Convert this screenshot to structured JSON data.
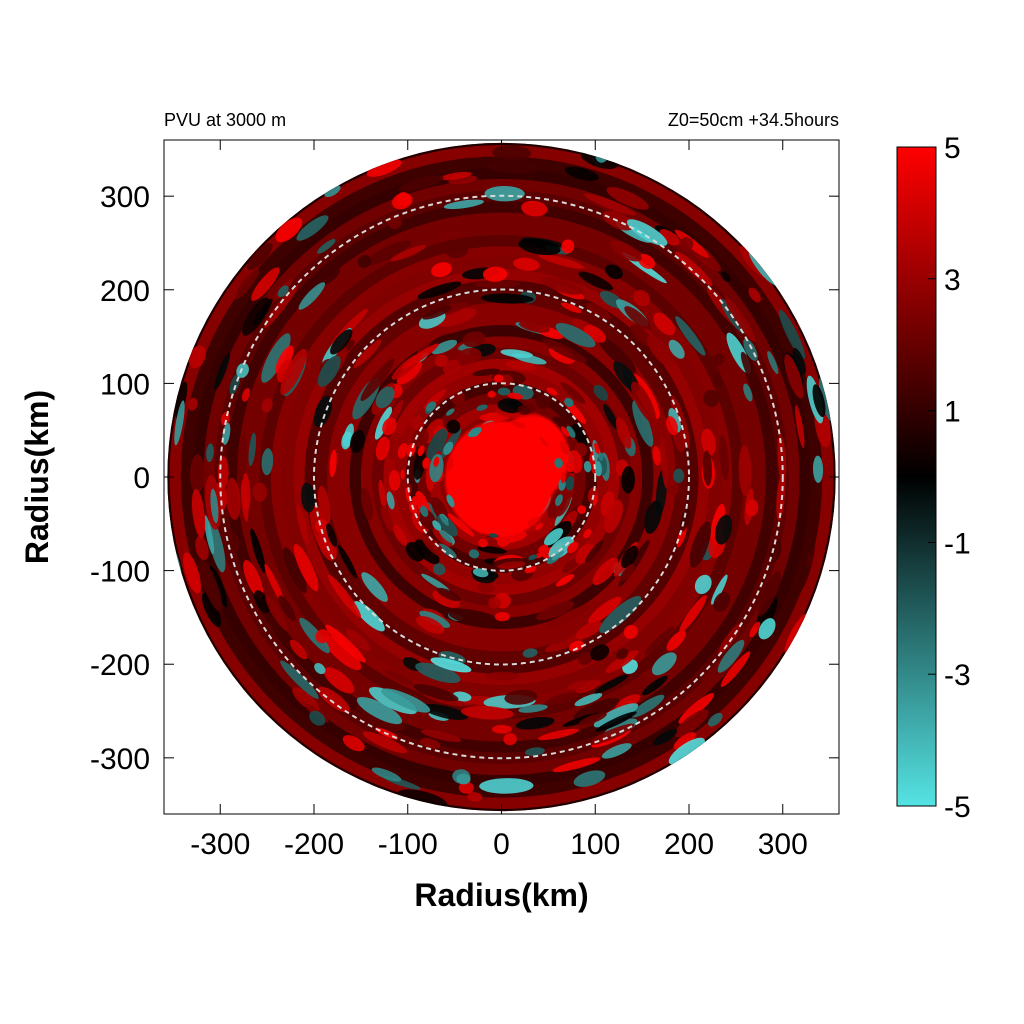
{
  "chart_data": {
    "type": "heatmap",
    "title_left": "PVU at  3000 m",
    "title_right": "Z0=50cm  +34.5hours",
    "xlabel": "Radius(km)",
    "ylabel": "Radius(km)",
    "xlim": [
      -360,
      360
    ],
    "ylim": [
      -360,
      360
    ],
    "x_ticks": [
      -300,
      -200,
      -100,
      0,
      100,
      200,
      300
    ],
    "y_ticks": [
      300,
      200,
      100,
      0,
      -100,
      -200,
      -300
    ],
    "x_tick_labels": [
      "-300",
      "-200",
      "-100",
      "0",
      "100",
      "200",
      "300"
    ],
    "y_tick_labels": [
      "300",
      "200",
      "100",
      "0",
      "-100",
      "-200",
      "-300"
    ],
    "domain_radius_km": 360,
    "reference_circles_km": [
      100,
      200,
      300
    ],
    "colorbar": {
      "range": [
        -5,
        5
      ],
      "tick_values": [
        5,
        3,
        1,
        -1,
        -3,
        -5
      ],
      "tick_labels": [
        "5",
        "3",
        "1",
        "-1",
        "-3",
        "-5"
      ],
      "stops": [
        {
          "value": -5,
          "color": "#55e3e3"
        },
        {
          "value": -2.5,
          "color": "#2a7373"
        },
        {
          "value": 0,
          "color": "#000000"
        },
        {
          "value": 2.5,
          "color": "#800000"
        },
        {
          "value": 5,
          "color": "#ff0000"
        }
      ]
    },
    "grid": false,
    "legend": "none"
  }
}
